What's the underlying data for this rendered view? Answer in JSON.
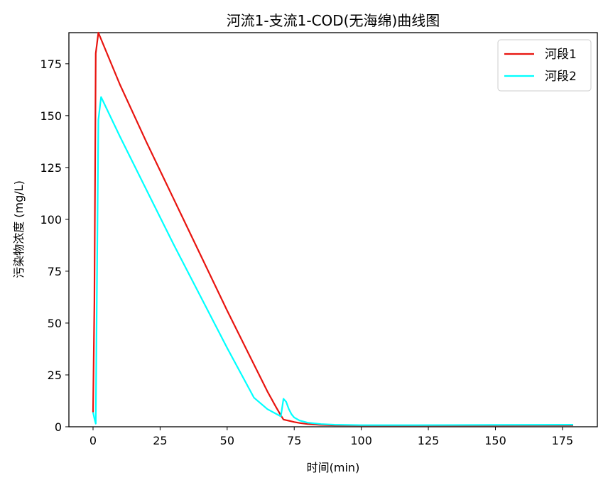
{
  "chart_data": {
    "type": "line",
    "title": "河流1-支流1-COD(无海绵)曲线图",
    "xlabel": "时间(min)",
    "ylabel": "污染物浓度 (mg/L)",
    "xlim": [
      -9,
      188
    ],
    "ylim": [
      0,
      190
    ],
    "xticks": [
      0,
      25,
      50,
      75,
      100,
      125,
      150,
      175
    ],
    "yticks": [
      0,
      25,
      50,
      75,
      100,
      125,
      150,
      175
    ],
    "legend_position": "top-right",
    "series": [
      {
        "name": "河段1",
        "color": "#e8140f",
        "x": [
          0,
          0.5,
          1,
          2,
          10,
          20,
          30,
          40,
          50,
          60,
          65,
          68,
          70,
          71,
          72,
          73,
          74,
          75,
          77,
          80,
          85,
          90,
          100,
          120,
          150,
          179
        ],
        "y": [
          7,
          60,
          180,
          190,
          165,
          137,
          110,
          83,
          56,
          30,
          17,
          10,
          5.5,
          3.5,
          3.2,
          2.9,
          2.6,
          2.3,
          1.8,
          1.3,
          0.9,
          0.7,
          0.6,
          0.6,
          0.6,
          0.7
        ]
      },
      {
        "name": "河段2",
        "color": "#00ffff",
        "x": [
          0,
          0.5,
          1,
          2,
          3,
          10,
          20,
          30,
          40,
          50,
          60,
          65,
          70,
          71,
          72,
          73,
          74,
          75,
          77,
          80,
          85,
          90,
          100,
          120,
          150,
          179
        ],
        "y": [
          7,
          4,
          1.5,
          148,
          159,
          140,
          114,
          88,
          63,
          38,
          14,
          8.5,
          5,
          13.5,
          12,
          8.5,
          6,
          4.5,
          3,
          2,
          1.3,
          1,
          0.8,
          0.8,
          0.9,
          1
        ]
      }
    ]
  }
}
